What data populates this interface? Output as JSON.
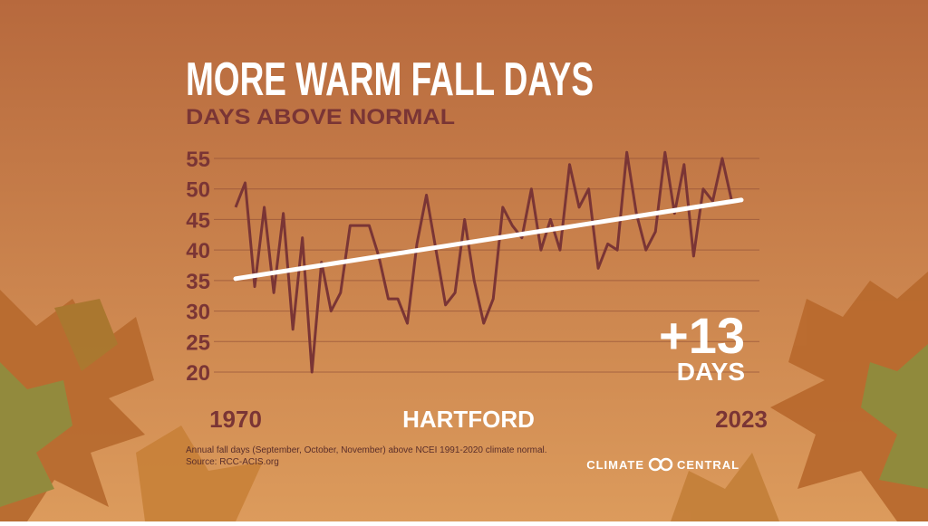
{
  "chart_data": {
    "type": "line",
    "title": "MORE WARM FALL DAYS",
    "subtitle": "DAYS ABOVE NORMAL",
    "location": "HARTFORD",
    "categories": [
      "1970",
      null,
      null,
      null,
      null,
      null,
      null,
      null,
      null,
      null,
      null,
      null,
      null,
      null,
      null,
      null,
      null,
      null,
      null,
      null,
      null,
      null,
      null,
      null,
      null,
      null,
      null,
      null,
      null,
      null,
      null,
      null,
      null,
      null,
      null,
      null,
      null,
      null,
      null,
      null,
      null,
      null,
      null,
      null,
      null,
      null,
      null,
      null,
      null,
      null,
      null,
      null,
      null,
      "2023"
    ],
    "series": [
      {
        "color": "#7a3535",
        "values": [
          47,
          51,
          34,
          47,
          33,
          46,
          27,
          42,
          20,
          38,
          30,
          33,
          44,
          44,
          44,
          39,
          32,
          32,
          28,
          41,
          49,
          40,
          31,
          33,
          45,
          35,
          28,
          32,
          47,
          44,
          42,
          50,
          40,
          45,
          40,
          54,
          47,
          50,
          37,
          41,
          40,
          56,
          46,
          40,
          43,
          56,
          46,
          54,
          39,
          50,
          48,
          55,
          48,
          48
        ]
      }
    ],
    "trend": {
      "color": "#ffffff",
      "values": [
        35.3,
        48.2
      ]
    },
    "annotation": "+13",
    "annotation_unit": "DAYS",
    "ylim": [
      20,
      55
    ],
    "yticks": [
      20,
      25,
      30,
      35,
      40,
      45,
      50,
      55
    ],
    "grid": true,
    "note": "Annual fall days (September, October, November) above NCEI 1991-2020 climate normal.",
    "source": "Source: RCC-ACIS.org",
    "logo": {
      "left": "CLIMATE",
      "right": "CENTRAL"
    }
  }
}
